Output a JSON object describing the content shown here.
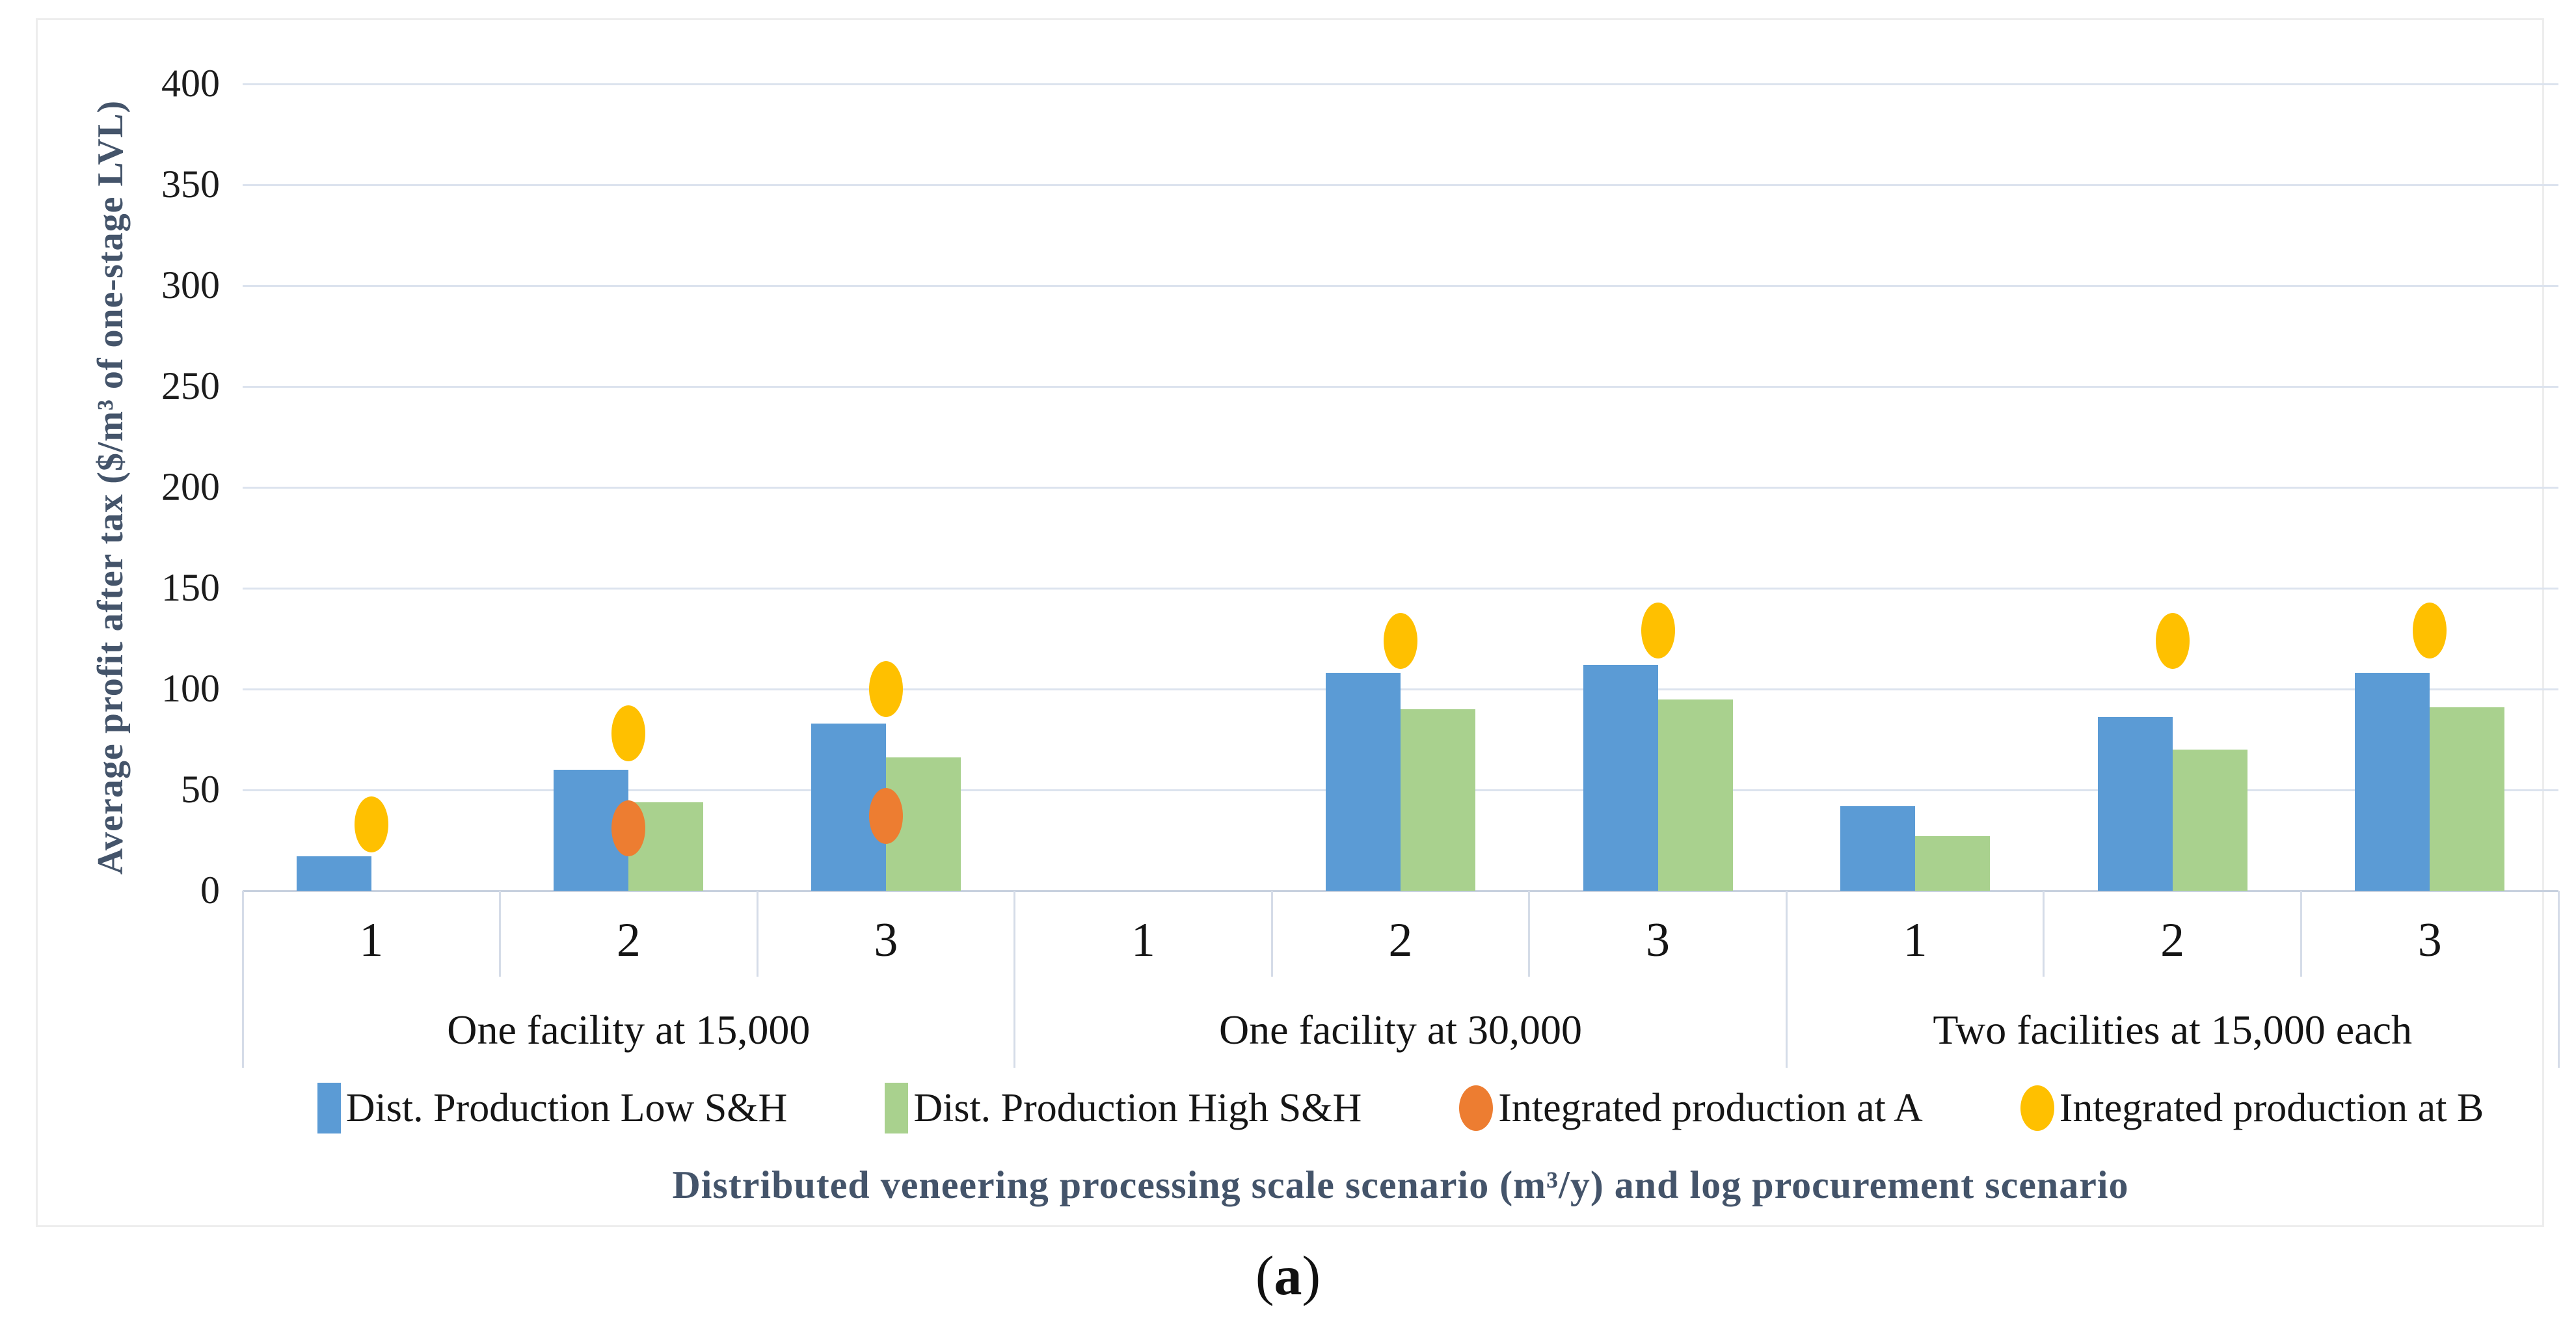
{
  "figure": {
    "caption_open": "(",
    "caption_letter": "a",
    "caption_close": ")"
  },
  "chart_data": {
    "type": "bar",
    "title": "",
    "ylabel": "Average profit after tax ($/m³ of one-stage LVL)",
    "xlabel": "Distributed veneering processing scale scenario (m³/y) and log procurement scenario",
    "ylim": [
      0,
      400
    ],
    "ytick_step": 50,
    "grid": true,
    "legend_position": "bottom",
    "title_color": "#44546A",
    "gridline_color": "#DCE3EE",
    "axis_line_color": "#C7D0DE",
    "separator_color": "#D5DCE8",
    "group_labels": [
      "One facility at 15,000",
      "One facility at 30,000",
      "Two facilities at 15,000 each"
    ],
    "category_labels": [
      "1",
      "2",
      "3",
      "1",
      "2",
      "3",
      "1",
      "2",
      "3"
    ],
    "series": [
      {
        "name": "Dist. Production Low S&H",
        "type": "bar",
        "marker": "square",
        "color": "#5B9BD5",
        "values": [
          17,
          60,
          83,
          null,
          108,
          112,
          42,
          86,
          108
        ]
      },
      {
        "name": "Dist. Production High S&H",
        "type": "bar",
        "marker": "square",
        "color": "#A9D18E",
        "values": [
          null,
          44,
          66,
          null,
          90,
          95,
          27,
          70,
          91
        ]
      },
      {
        "name": "Integrated production at A",
        "type": "scatter",
        "marker": "circle",
        "color": "#ED7D31",
        "values": [
          null,
          31,
          37,
          null,
          null,
          null,
          null,
          null,
          null
        ]
      },
      {
        "name": "Integrated production at B",
        "type": "scatter",
        "marker": "circle",
        "color": "#FFC000",
        "values": [
          33,
          78,
          100,
          null,
          124,
          129,
          null,
          124,
          129
        ]
      }
    ]
  }
}
